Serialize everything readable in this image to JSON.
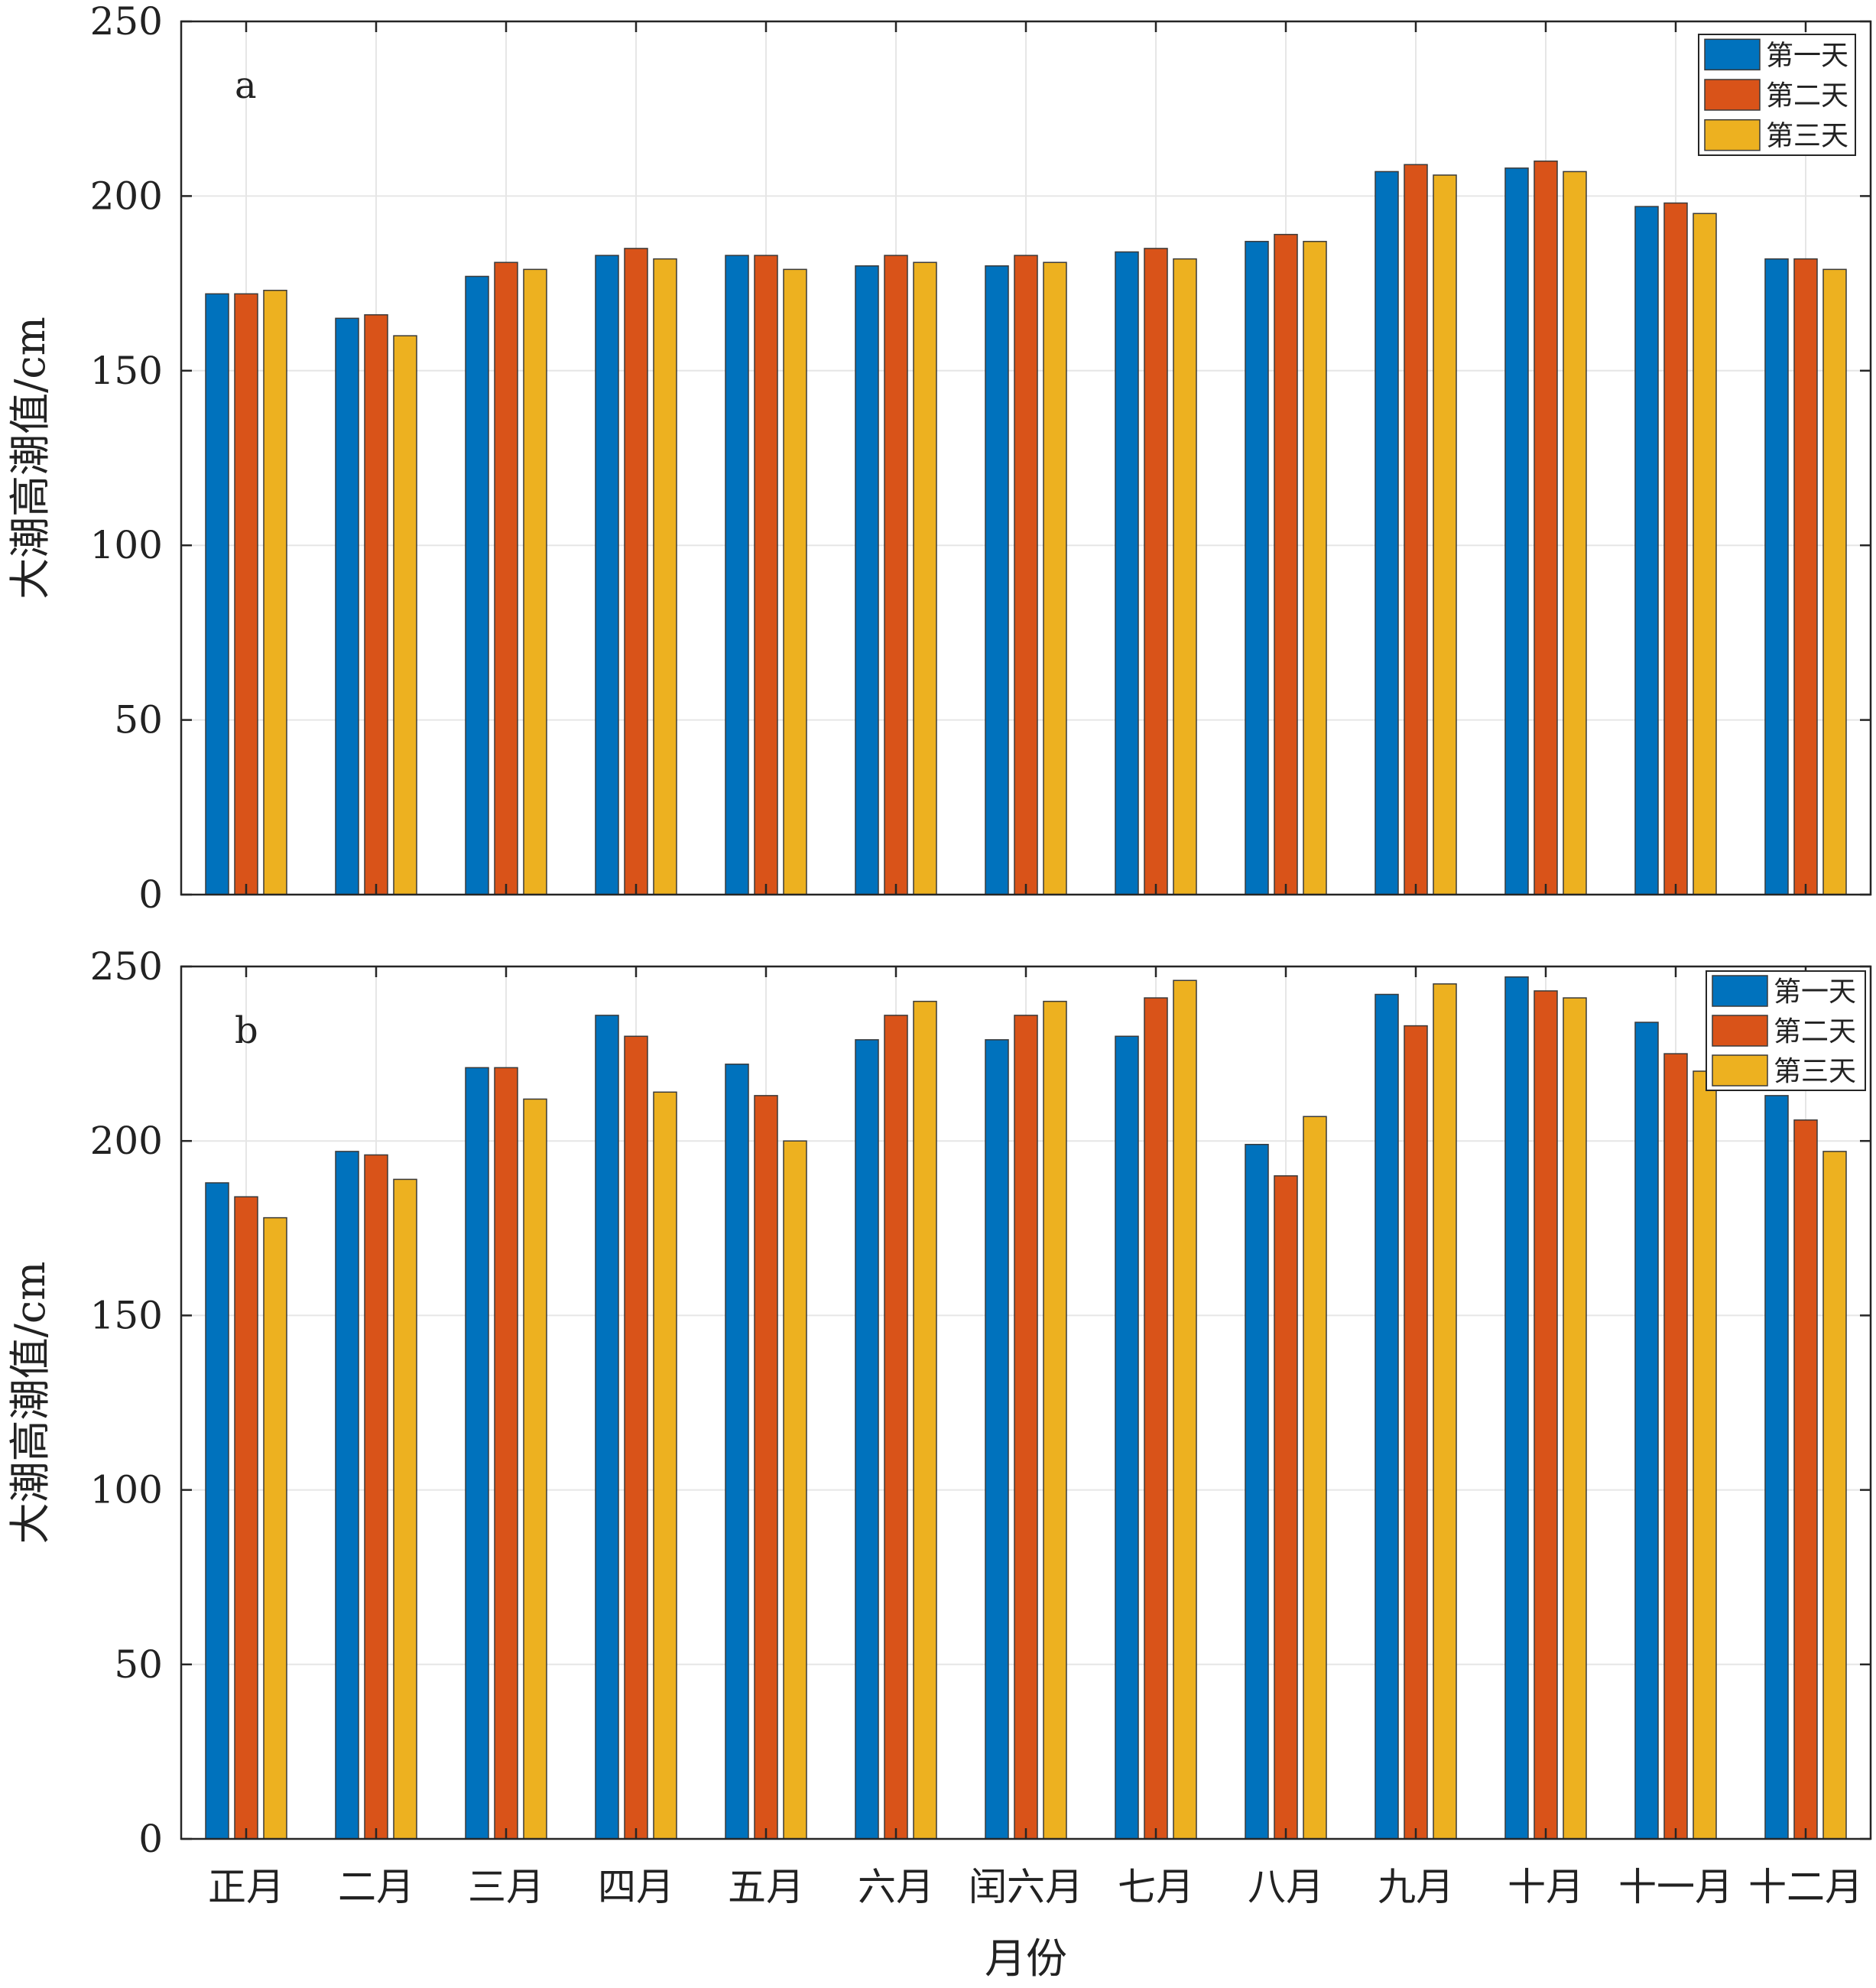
{
  "chart_data": [
    {
      "type": "bar",
      "panel_label": "a",
      "categories": [
        "正月",
        "二月",
        "三月",
        "四月",
        "五月",
        "六月",
        "闰六月",
        "七月",
        "八月",
        "九月",
        "十月",
        "十一月",
        "十二月"
      ],
      "series": [
        {
          "name": "第一天",
          "color": "#0072BD",
          "values": [
            172,
            165,
            177,
            183,
            183,
            180,
            180,
            184,
            187,
            207,
            208,
            197,
            182
          ]
        },
        {
          "name": "第二天",
          "color": "#D95319",
          "values": [
            172,
            166,
            181,
            185,
            183,
            183,
            183,
            185,
            189,
            209,
            210,
            198,
            182
          ]
        },
        {
          "name": "第三天",
          "color": "#EDB120",
          "values": [
            173,
            160,
            179,
            182,
            179,
            181,
            181,
            182,
            187,
            206,
            207,
            195,
            179
          ]
        }
      ],
      "ylabel": "大潮高潮值/cm",
      "ylim": [
        0,
        250
      ],
      "yticks": [
        "0",
        "50",
        "100",
        "150",
        "200",
        "250"
      ],
      "grid": true,
      "legend_position": "top-right"
    },
    {
      "type": "bar",
      "panel_label": "b",
      "categories": [
        "正月",
        "二月",
        "三月",
        "四月",
        "五月",
        "六月",
        "闰六月",
        "七月",
        "八月",
        "九月",
        "十月",
        "十一月",
        "十二月"
      ],
      "series": [
        {
          "name": "第一天",
          "color": "#0072BD",
          "values": [
            188,
            197,
            221,
            236,
            222,
            229,
            229,
            230,
            199,
            242,
            247,
            234,
            213
          ]
        },
        {
          "name": "第二天",
          "color": "#D95319",
          "values": [
            184,
            196,
            221,
            230,
            213,
            236,
            236,
            241,
            190,
            233,
            243,
            225,
            206
          ]
        },
        {
          "name": "第三天",
          "color": "#EDB120",
          "values": [
            178,
            189,
            212,
            214,
            200,
            240,
            240,
            246,
            207,
            245,
            241,
            220,
            197
          ]
        }
      ],
      "xlabel": "月份",
      "ylabel": "大潮高潮值/cm",
      "ylim": [
        0,
        250
      ],
      "yticks": [
        "0",
        "50",
        "100",
        "150",
        "200",
        "250"
      ],
      "grid": true,
      "legend_position": "top-right"
    }
  ]
}
